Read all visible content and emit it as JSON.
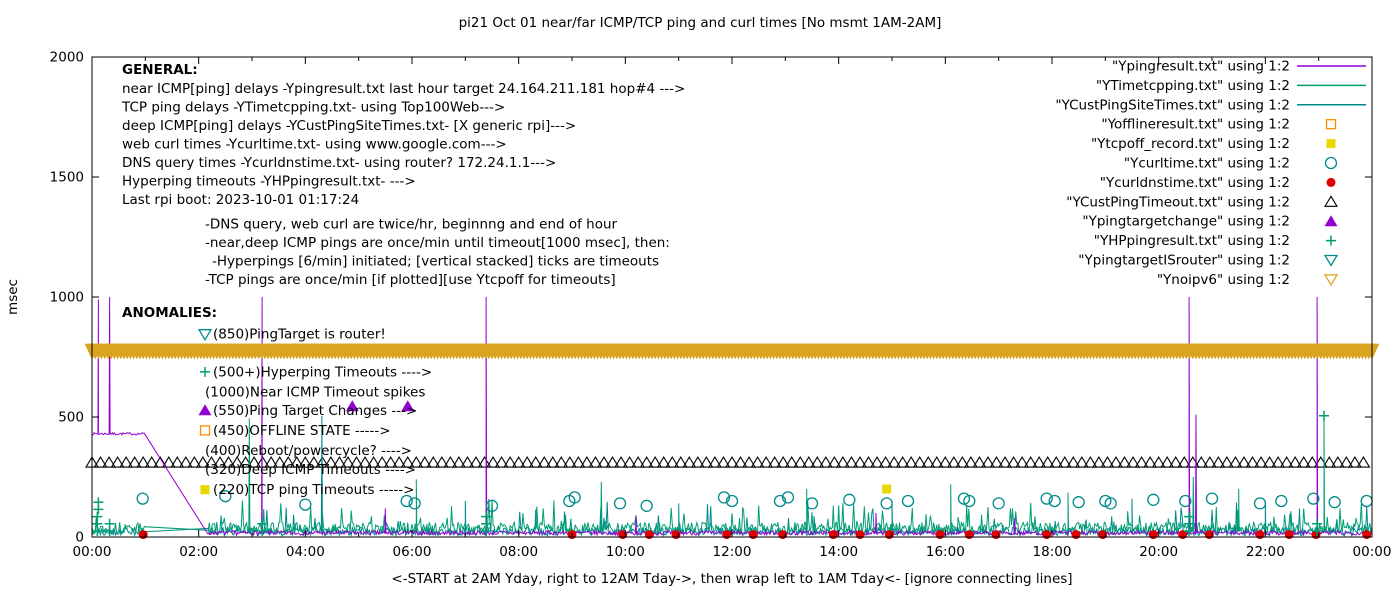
{
  "chart_data": {
    "type": "line",
    "title": "pi21 Oct 01  near/far ICMP/TCP ping and curl times [No msmt 1AM-2AM]",
    "xlabel": "<-START at 2AM Yday, right to 12AM Tday->, then wrap left to 1AM Tday<- [ignore connecting lines]",
    "ylabel": "msec",
    "xlim": [
      0,
      24
    ],
    "ylim": [
      0,
      2000
    ],
    "grid": false,
    "legend_position": "top-right-inside",
    "xticks": [
      [
        0,
        "00:00"
      ],
      [
        2,
        "02:00"
      ],
      [
        4,
        "04:00"
      ],
      [
        6,
        "06:00"
      ],
      [
        8,
        "08:00"
      ],
      [
        10,
        "10:00"
      ],
      [
        12,
        "12:00"
      ],
      [
        14,
        "14:00"
      ],
      [
        16,
        "16:00"
      ],
      [
        18,
        "18:00"
      ],
      [
        20,
        "20:00"
      ],
      [
        22,
        "22:00"
      ],
      [
        24,
        "00:00"
      ]
    ],
    "yticks": [
      0,
      500,
      1000,
      1500,
      2000
    ],
    "colors": {
      "purple": "#9400d3",
      "green": "#009e73",
      "teal": "#008b8b",
      "orange": "#ff8c00",
      "yellow": "#e8d800",
      "red": "#dd0000",
      "black": "#000000",
      "gold": "#d9a521"
    },
    "legend": [
      {
        "label": "\"Ypingresult.txt\" using 1:2",
        "type": "line",
        "color": "purple"
      },
      {
        "label": "\"YTimetcpping.txt\" using 1:2",
        "type": "line",
        "color": "green"
      },
      {
        "label": "\"YCustPingSiteTimes.txt\" using 1:2",
        "type": "line",
        "color": "teal"
      },
      {
        "label": "\"Yofflineresult.txt\" using 1:2",
        "type": "square-open",
        "color": "orange"
      },
      {
        "label": "\"Ytcpoff_record.txt\" using 1:2",
        "type": "square-filled",
        "color": "yellow"
      },
      {
        "label": "\"Ycurltime.txt\" using 1:2",
        "type": "circle-open",
        "color": "teal"
      },
      {
        "label": "\"Ycurldnstime.txt\" using 1:2",
        "type": "circle-filled",
        "color": "red"
      },
      {
        "label": "\"YCustPingTimeout.txt\" using 1:2",
        "type": "tri-up-open",
        "color": "black"
      },
      {
        "label": "\"Ypingtargetchange\" using 1:2",
        "type": "tri-up-filled",
        "color": "purple"
      },
      {
        "label": "\"YHPpingresult.txt\" using 1:2",
        "type": "plus",
        "color": "green"
      },
      {
        "label": "\"YpingtargetISrouter\" using 1:2",
        "type": "tri-down-open",
        "color": "teal"
      },
      {
        "label": "\"Ynoipv6\" using 1:2",
        "type": "tri-down-open",
        "color": "gold"
      }
    ],
    "series": {
      "ypingresult": {
        "color": "purple",
        "flat": {
          "to": 1.0,
          "value": 430
        },
        "gap_end": 2.17,
        "baseline": {
          "base": 8,
          "amp": 18
        },
        "spikes": [
          [
            0.12,
            990
          ],
          [
            0.33,
            1000
          ],
          [
            3.19,
            1000
          ],
          [
            7.39,
            1000
          ],
          [
            20.57,
            1000
          ],
          [
            20.7,
            510
          ],
          [
            22.97,
            1000
          ]
        ],
        "bumps": [
          [
            5.5,
            120
          ],
          [
            10.2,
            90
          ],
          [
            14.7,
            100
          ],
          [
            17.3,
            80
          ]
        ]
      },
      "ytimetcpping": {
        "color": "green",
        "base": 12,
        "amp": 110,
        "tall_prob": 0.07,
        "tall_amp": 120,
        "spikes": [
          [
            2.95,
            495
          ],
          [
            6.08,
            240
          ],
          [
            9.55,
            230
          ],
          [
            13.4,
            200
          ],
          [
            16.1,
            220
          ],
          [
            18.3,
            185
          ],
          [
            20.65,
            250
          ],
          [
            21.5,
            200
          ],
          [
            23.1,
            505
          ]
        ]
      },
      "ycustpingsitetimes": {
        "color": "teal",
        "base": 5,
        "amp": 80,
        "tall_prob": 0.05,
        "tall_amp": 110,
        "spikes": [
          [
            4.31,
            505
          ],
          [
            7.0,
            150
          ],
          [
            11.0,
            140
          ],
          [
            15.0,
            150
          ],
          [
            19.5,
            160
          ],
          [
            22.0,
            150
          ]
        ]
      },
      "ycustpingtimeout": {
        "color": "black",
        "y": 310,
        "ranges": [
          [
            0,
            24
          ]
        ],
        "step": 0.16
      },
      "ycurltime": {
        "color": "teal",
        "points": [
          [
            0.95,
            160
          ],
          [
            2.5,
            170
          ],
          [
            4.0,
            135
          ],
          [
            5.9,
            150
          ],
          [
            6.05,
            140
          ],
          [
            7.5,
            130
          ],
          [
            8.95,
            150
          ],
          [
            9.05,
            165
          ],
          [
            9.9,
            140
          ],
          [
            10.4,
            130
          ],
          [
            11.85,
            165
          ],
          [
            12.0,
            150
          ],
          [
            12.9,
            150
          ],
          [
            13.05,
            165
          ],
          [
            13.5,
            140
          ],
          [
            14.2,
            155
          ],
          [
            14.9,
            140
          ],
          [
            15.3,
            150
          ],
          [
            16.35,
            160
          ],
          [
            16.45,
            150
          ],
          [
            17.0,
            140
          ],
          [
            17.9,
            160
          ],
          [
            18.05,
            150
          ],
          [
            18.5,
            145
          ],
          [
            19.0,
            150
          ],
          [
            19.1,
            140
          ],
          [
            19.9,
            155
          ],
          [
            20.5,
            150
          ],
          [
            21.0,
            160
          ],
          [
            21.9,
            140
          ],
          [
            22.3,
            150
          ],
          [
            22.9,
            160
          ],
          [
            23.3,
            145
          ],
          [
            23.9,
            150
          ]
        ]
      },
      "ycurldnstime": {
        "color": "red",
        "y": 10,
        "times": [
          0.96,
          9.0,
          9.95,
          10.45,
          10.95,
          11.9,
          12.4,
          12.95,
          13.9,
          14.4,
          14.95,
          15.9,
          16.45,
          16.95,
          17.9,
          18.45,
          18.95,
          19.9,
          20.45,
          20.95,
          21.9,
          22.45,
          22.95,
          23.9
        ]
      },
      "yhppingresult": {
        "color": "green",
        "points": [
          [
            0.1,
            25
          ],
          [
            0.1,
            55
          ],
          [
            0.1,
            85
          ],
          [
            0.12,
            115
          ],
          [
            0.12,
            145
          ],
          [
            0.33,
            25
          ],
          [
            0.33,
            55
          ],
          [
            3.19,
            25
          ],
          [
            3.19,
            55
          ],
          [
            7.39,
            25
          ],
          [
            7.39,
            55
          ],
          [
            7.39,
            85
          ],
          [
            20.57,
            25
          ],
          [
            20.57,
            55
          ],
          [
            20.57,
            85
          ],
          [
            22.97,
            25
          ],
          [
            22.97,
            55
          ],
          [
            23.1,
            505
          ]
        ]
      },
      "ypingtargetchange": {
        "color": "purple",
        "points": [
          [
            4.88,
            545
          ],
          [
            5.92,
            545
          ]
        ]
      },
      "ytcpoff_record": {
        "color": "yellow",
        "points": [
          [
            14.9,
            200
          ]
        ]
      },
      "yofflineresult": {
        "color": "orange",
        "points": []
      },
      "ypingtargetisrouter": {
        "color": "teal",
        "points": []
      },
      "ynoipv6": {
        "color": "gold",
        "band_y": 775,
        "from": 0,
        "to": 24,
        "step": 0.06
      }
    },
    "annotations": {
      "general": {
        "header": "GENERAL:",
        "lines": [
          "near ICMP[ping] delays -Ypingresult.txt last hour target 24.164.211.181 hop#4 --->",
          "TCP ping delays -YTimetcpping.txt- using Top100Web--->",
          "deep ICMP[ping] delays -YCustPingSiteTimes.txt- [X generic rpi]--->",
          "web curl times -Ycurltime.txt- using www.google.com--->",
          "DNS query times -Ycurldnstime.txt- using router? 172.24.1.1--->",
          "Hyperping timeouts -YHPpingresult.txt- --->",
          "Last rpi boot: 2023-10-01 01:17:24",
          "-DNS query, web curl are twice/hr, beginnng and end of hour",
          "-near,deep ICMP pings are once/min until timeout[1000 msec], then:",
          "-Hyperpings [6/min] initiated; [vertical stacked] ticks are timeouts",
          "-TCP pings are once/min [if plotted][use Ytcpoff for timeouts]"
        ]
      },
      "anomalies": {
        "header": "ANOMALIES:",
        "v": 935,
        "items": [
          {
            "marker": "tri-down-open",
            "color": "teal",
            "v": 845,
            "text": "(850)PingTarget is router!"
          },
          {
            "marker": "plus",
            "color": "green",
            "v": 688,
            "text": "(500+)Hyperping Timeouts ---->"
          },
          {
            "marker": null,
            "color": "black",
            "v": 604,
            "text": "(1000)Near ICMP Timeout spikes"
          },
          {
            "marker": "tri-up-filled",
            "color": "purple",
            "v": 528,
            "text": "(550)Ping Target Changes --->"
          },
          {
            "marker": "square-open",
            "color": "orange",
            "v": 444,
            "text": "(450)OFFLINE STATE ----->"
          },
          {
            "marker": null,
            "color": "black",
            "v": 361,
            "text": "(400)Reboot/powercycle? ---->"
          },
          {
            "marker": null,
            "color": "black",
            "v": 281,
            "text": "(320)Deep ICMP Timeouts ---->"
          },
          {
            "marker": "square-filled",
            "color": "yellow",
            "v": 197,
            "text": "(220)TCP ping Timeouts ----->"
          }
        ]
      }
    }
  }
}
